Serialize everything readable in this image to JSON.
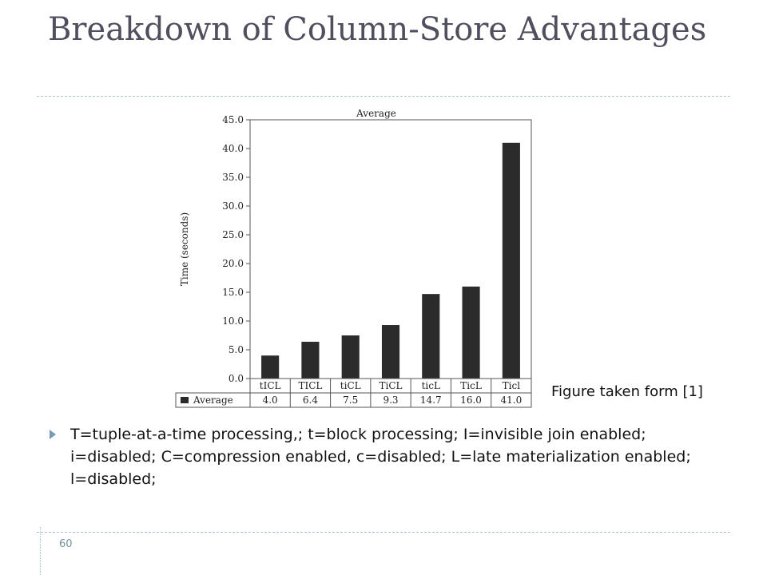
{
  "slide": {
    "title": "Breakdown of Column-Store Advantages",
    "caption": "Figure taken form [1]",
    "bullet": "T=tuple-at-a-time processing,; t=block processing; I=invisible join enabled; i=disabled; C=compression enabled, c=disabled; L=late materialization enabled; l=disabled;",
    "page_number": "60"
  },
  "chart_data": {
    "type": "bar",
    "title": "Average",
    "ylabel": "Time (seconds)",
    "categories": [
      "tICL",
      "TICL",
      "tiCL",
      "TiCL",
      "ticL",
      "TicL",
      "Ticl"
    ],
    "series": [
      {
        "name": "Average",
        "values": [
          4.0,
          6.4,
          7.5,
          9.3,
          14.7,
          16.0,
          41.0
        ]
      }
    ],
    "value_labels": [
      "4.0",
      "6.4",
      "7.5",
      "9.3",
      "14.7",
      "16.0",
      "41.0"
    ],
    "yticks": [
      "0.0",
      "5.0",
      "10.0",
      "15.0",
      "20.0",
      "25.0",
      "30.0",
      "35.0",
      "40.0",
      "45.0"
    ],
    "ylim": [
      0,
      45
    ],
    "legend": "bottom-left, in data table",
    "bar_color": "#2b2b2b",
    "grid": false
  }
}
